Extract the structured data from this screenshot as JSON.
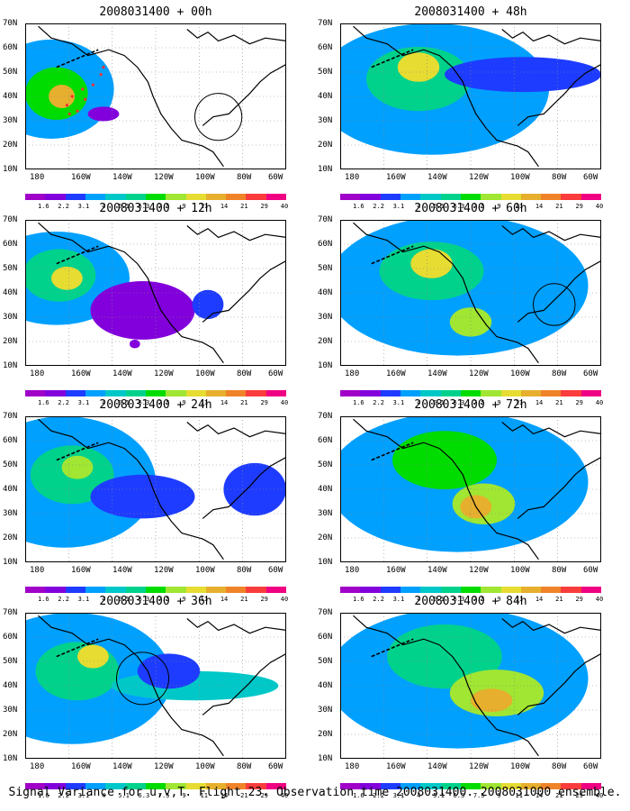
{
  "panels": [
    {
      "id": "p00",
      "title": "2008031400 + 00h",
      "blobs": [
        [
          0.1,
          0.45,
          0.24,
          0.34,
          3
        ],
        [
          0.12,
          0.48,
          0.12,
          0.18,
          6
        ],
        [
          0.14,
          0.5,
          0.05,
          0.08,
          9
        ],
        [
          0.3,
          0.62,
          0.06,
          0.05,
          1
        ]
      ],
      "circle": [
        0.74,
        0.64,
        0.09
      ],
      "track": true
    },
    {
      "id": "p12",
      "title": "2008031400 + 12h",
      "blobs": [
        [
          0.12,
          0.4,
          0.28,
          0.32,
          3
        ],
        [
          0.13,
          0.38,
          0.14,
          0.18,
          5
        ],
        [
          0.16,
          0.4,
          0.06,
          0.08,
          8
        ],
        [
          0.45,
          0.62,
          0.2,
          0.2,
          1
        ],
        [
          0.7,
          0.58,
          0.06,
          0.1,
          2
        ],
        [
          0.42,
          0.85,
          0.02,
          0.03,
          1
        ]
      ],
      "circle": null,
      "track": false
    },
    {
      "id": "p24",
      "title": "2008031400 + 24h",
      "blobs": [
        [
          0.15,
          0.45,
          0.35,
          0.45,
          3
        ],
        [
          0.18,
          0.4,
          0.16,
          0.2,
          5
        ],
        [
          0.2,
          0.35,
          0.06,
          0.08,
          7
        ],
        [
          0.45,
          0.55,
          0.2,
          0.15,
          2
        ],
        [
          0.88,
          0.5,
          0.12,
          0.18,
          2
        ]
      ],
      "circle": null,
      "track": false
    },
    {
      "id": "p36",
      "title": "2008031400 + 36h",
      "blobs": [
        [
          0.18,
          0.45,
          0.38,
          0.45,
          3
        ],
        [
          0.2,
          0.4,
          0.16,
          0.2,
          5
        ],
        [
          0.26,
          0.3,
          0.06,
          0.08,
          8
        ],
        [
          0.65,
          0.5,
          0.32,
          0.1,
          4
        ],
        [
          0.55,
          0.4,
          0.12,
          0.12,
          2
        ]
      ],
      "circle": [
        0.45,
        0.45,
        0.1
      ],
      "track": false
    },
    {
      "id": "p48",
      "title": "2008031400 + 48h",
      "blobs": [
        [
          0.35,
          0.45,
          0.45,
          0.45,
          3
        ],
        [
          0.3,
          0.38,
          0.2,
          0.22,
          5
        ],
        [
          0.3,
          0.3,
          0.08,
          0.1,
          8
        ],
        [
          0.7,
          0.35,
          0.3,
          0.12,
          2
        ]
      ],
      "circle": null,
      "track": false
    },
    {
      "id": "p60",
      "title": "2008031400 + 60h",
      "blobs": [
        [
          0.45,
          0.45,
          0.5,
          0.48,
          3
        ],
        [
          0.35,
          0.35,
          0.2,
          0.2,
          5
        ],
        [
          0.35,
          0.3,
          0.08,
          0.1,
          8
        ],
        [
          0.5,
          0.7,
          0.08,
          0.1,
          7
        ]
      ],
      "circle": [
        0.82,
        0.58,
        0.08
      ],
      "track": false
    },
    {
      "id": "p72",
      "title": "2008031400 + 72h",
      "blobs": [
        [
          0.45,
          0.45,
          0.5,
          0.48,
          3
        ],
        [
          0.4,
          0.3,
          0.2,
          0.2,
          6
        ],
        [
          0.55,
          0.6,
          0.12,
          0.14,
          7
        ],
        [
          0.52,
          0.62,
          0.06,
          0.08,
          9
        ]
      ],
      "circle": null,
      "track": false
    },
    {
      "id": "p84",
      "title": "2008031400 + 84h",
      "blobs": [
        [
          0.45,
          0.45,
          0.5,
          0.48,
          3
        ],
        [
          0.4,
          0.3,
          0.22,
          0.22,
          5
        ],
        [
          0.6,
          0.55,
          0.18,
          0.16,
          7
        ],
        [
          0.58,
          0.6,
          0.08,
          0.08,
          9
        ]
      ],
      "circle": null,
      "track": false
    }
  ],
  "axes": {
    "lat_labels": [
      "70N",
      "60N",
      "50N",
      "40N",
      "30N",
      "20N",
      "10N"
    ],
    "lon_labels": [
      "180",
      "160W",
      "140W",
      "120W",
      "100W",
      "80W",
      "60W"
    ]
  },
  "colorbar": {
    "colors": [
      "#a000c8",
      "#8200dc",
      "#1e3cff",
      "#00a0ff",
      "#00c8c8",
      "#00d28c",
      "#00dc00",
      "#a0e632",
      "#e6dc32",
      "#e6af2d",
      "#f08228",
      "#fa3c3c",
      "#f00082"
    ],
    "labels": [
      "1.6",
      "2.2",
      "3.1",
      "4",
      "5.1",
      "6.3",
      "7.5",
      "9",
      "11",
      "14",
      "21",
      "29",
      "40"
    ]
  },
  "caption": "Signal Variance for u,v,T. Flight 23. Observation time 2008031400. 2008031000 ensemble."
}
